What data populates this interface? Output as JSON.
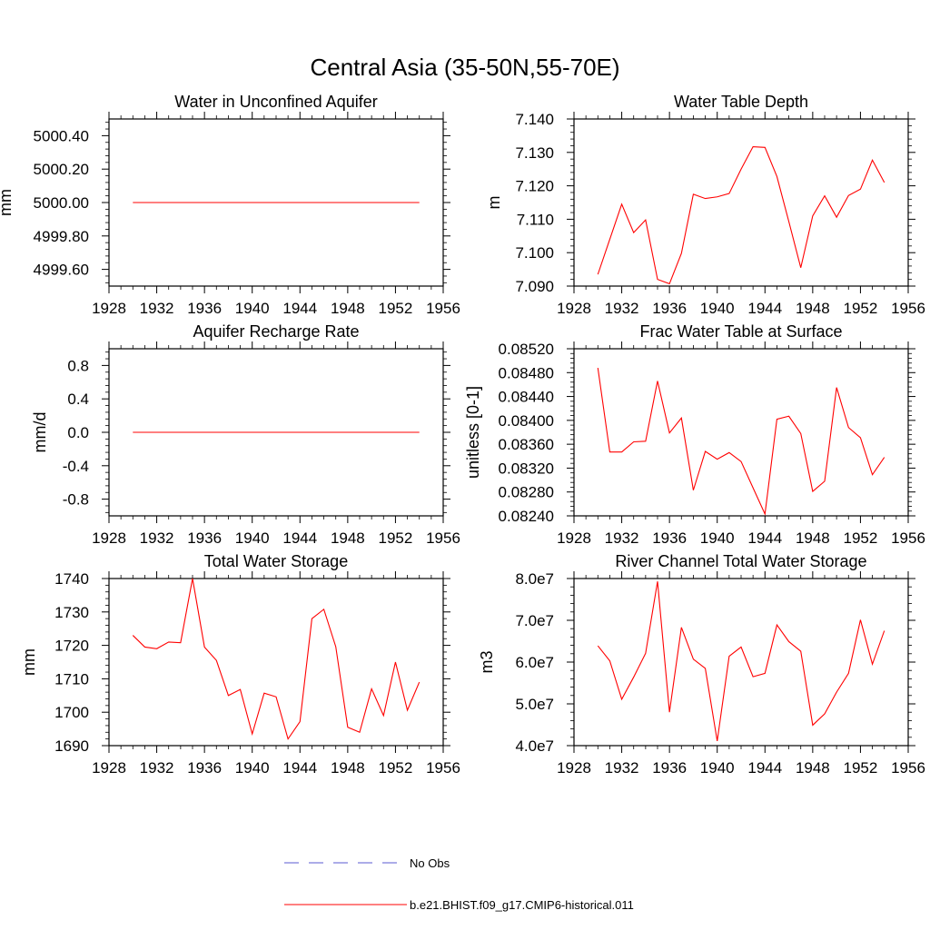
{
  "figure": {
    "title": "Central Asia (35-50N,55-70E)"
  },
  "legend": {
    "entries": [
      {
        "label": "No Obs",
        "color": "#5a5ad2",
        "dash": true
      },
      {
        "label": "b.e21.BHIST.f09_g17.CMIP6-historical.011",
        "color": "#ff0000",
        "dash": false
      }
    ]
  },
  "chart_data": [
    {
      "type": "line",
      "title": "Water in Unconfined Aquifer",
      "xlabel": "",
      "ylabel": "mm",
      "xlim": [
        1928,
        1956
      ],
      "ylim": [
        4999.5,
        5000.5
      ],
      "xticks": [
        1928,
        1932,
        1936,
        1940,
        1944,
        1948,
        1952,
        1956
      ],
      "xtick_labels": [
        "1928",
        "1932",
        "1936",
        "1940",
        "1944",
        "1948",
        "1952",
        "1956"
      ],
      "yticks": [
        4999.6,
        4999.8,
        5000.0,
        5000.2,
        5000.4
      ],
      "ytick_labels": [
        "4999.60",
        "4999.80",
        "5000.00",
        "5000.20",
        "5000.40"
      ],
      "series": [
        {
          "color": "#ff0000",
          "x": [
            1930,
            1954
          ],
          "y": [
            5000.0,
            5000.0
          ]
        }
      ]
    },
    {
      "type": "line",
      "title": "Water Table Depth",
      "xlabel": "",
      "ylabel": "m",
      "xlim": [
        1928,
        1956
      ],
      "ylim": [
        7.09,
        7.14
      ],
      "xticks": [
        1928,
        1932,
        1936,
        1940,
        1944,
        1948,
        1952,
        1956
      ],
      "xtick_labels": [
        "1928",
        "1932",
        "1936",
        "1940",
        "1944",
        "1948",
        "1952",
        "1956"
      ],
      "yticks": [
        7.09,
        7.1,
        7.11,
        7.12,
        7.13,
        7.14
      ],
      "ytick_labels": [
        "7.090",
        "7.100",
        "7.110",
        "7.120",
        "7.130",
        "7.140"
      ],
      "series": [
        {
          "color": "#ff0000",
          "x": [
            1930,
            1931,
            1932,
            1933,
            1934,
            1935,
            1936,
            1937,
            1938,
            1939,
            1940,
            1941,
            1942,
            1943,
            1944,
            1945,
            1946,
            1947,
            1948,
            1949,
            1950,
            1951,
            1952,
            1953,
            1954
          ],
          "y": [
            7.0935,
            7.104,
            7.1145,
            7.106,
            7.1098,
            7.092,
            7.0907,
            7.0998,
            7.1175,
            7.1162,
            7.1167,
            7.1177,
            7.125,
            7.1317,
            7.1315,
            7.1228,
            7.1093,
            7.0955,
            7.111,
            7.117,
            7.1106,
            7.1171,
            7.119,
            7.1277,
            7.121
          ]
        }
      ]
    },
    {
      "type": "line",
      "title": "Aquifer Recharge Rate",
      "xlabel": "",
      "ylabel": "mm/d",
      "xlim": [
        1928,
        1956
      ],
      "ylim": [
        -1.0,
        1.0
      ],
      "xticks": [
        1928,
        1932,
        1936,
        1940,
        1944,
        1948,
        1952,
        1956
      ],
      "xtick_labels": [
        "1928",
        "1932",
        "1936",
        "1940",
        "1944",
        "1948",
        "1952",
        "1956"
      ],
      "yticks": [
        -0.8,
        -0.4,
        0.0,
        0.4,
        0.8
      ],
      "ytick_labels": [
        "-0.8",
        "-0.4",
        "0.0",
        "0.4",
        "0.8"
      ],
      "series": [
        {
          "color": "#ff0000",
          "x": [
            1930,
            1954
          ],
          "y": [
            0.0,
            0.0
          ]
        }
      ]
    },
    {
      "type": "line",
      "title": "Frac Water Table at Surface",
      "xlabel": "",
      "ylabel": "unitless [0-1]",
      "xlim": [
        1928,
        1956
      ],
      "ylim": [
        0.0824,
        0.0852
      ],
      "xticks": [
        1928,
        1932,
        1936,
        1940,
        1944,
        1948,
        1952,
        1956
      ],
      "xtick_labels": [
        "1928",
        "1932",
        "1936",
        "1940",
        "1944",
        "1948",
        "1952",
        "1956"
      ],
      "yticks": [
        0.0824,
        0.0828,
        0.0832,
        0.0836,
        0.084,
        0.0844,
        0.0848,
        0.0852
      ],
      "ytick_labels": [
        "0.08240",
        "0.08280",
        "0.08320",
        "0.08360",
        "0.08400",
        "0.08440",
        "0.08480",
        "0.08520"
      ],
      "series": [
        {
          "color": "#ff0000",
          "x": [
            1930,
            1931,
            1932,
            1933,
            1934,
            1935,
            1936,
            1937,
            1938,
            1939,
            1940,
            1941,
            1942,
            1943,
            1944,
            1945,
            1946,
            1947,
            1948,
            1949,
            1950,
            1951,
            1952,
            1953,
            1954
          ],
          "y": [
            0.08488,
            0.08347,
            0.08347,
            0.08364,
            0.08365,
            0.08466,
            0.08379,
            0.08404,
            0.08283,
            0.08348,
            0.08335,
            0.08346,
            0.08331,
            0.08287,
            0.08243,
            0.08402,
            0.08407,
            0.08378,
            0.08281,
            0.08298,
            0.08455,
            0.08388,
            0.08371,
            0.08309,
            0.08338
          ]
        }
      ]
    },
    {
      "type": "line",
      "title": "Total Water Storage",
      "xlabel": "",
      "ylabel": "mm",
      "xlim": [
        1928,
        1956
      ],
      "ylim": [
        1690,
        1740
      ],
      "xticks": [
        1928,
        1932,
        1936,
        1940,
        1944,
        1948,
        1952,
        1956
      ],
      "xtick_labels": [
        "1928",
        "1932",
        "1936",
        "1940",
        "1944",
        "1948",
        "1952",
        "1956"
      ],
      "yticks": [
        1690,
        1700,
        1710,
        1720,
        1730,
        1740
      ],
      "ytick_labels": [
        "1690",
        "1700",
        "1710",
        "1720",
        "1730",
        "1740"
      ],
      "series": [
        {
          "color": "#ff0000",
          "x": [
            1930,
            1931,
            1932,
            1933,
            1934,
            1935,
            1936,
            1937,
            1938,
            1939,
            1940,
            1941,
            1942,
            1943,
            1944,
            1945,
            1946,
            1947,
            1948,
            1949,
            1950,
            1951,
            1952,
            1953,
            1954
          ],
          "y": [
            1723,
            1719.5,
            1719,
            1721,
            1720.8,
            1740,
            1719.5,
            1715.5,
            1705,
            1706.8,
            1693.5,
            1705.7,
            1704.6,
            1692,
            1697.2,
            1728,
            1730.8,
            1719.6,
            1695.5,
            1694,
            1707,
            1699,
            1715,
            1700.6,
            1709
          ]
        }
      ]
    },
    {
      "type": "line",
      "title": "River Channel Total Water Storage",
      "xlabel": "",
      "ylabel": "m3",
      "xlim": [
        1928,
        1956
      ],
      "ylim": [
        40000000,
        80000000
      ],
      "xticks": [
        1928,
        1932,
        1936,
        1940,
        1944,
        1948,
        1952,
        1956
      ],
      "xtick_labels": [
        "1928",
        "1932",
        "1936",
        "1940",
        "1944",
        "1948",
        "1952",
        "1956"
      ],
      "yticks": [
        40000000,
        50000000,
        60000000,
        70000000,
        80000000
      ],
      "ytick_labels": [
        "4.0e7",
        "5.0e7",
        "6.0e7",
        "7.0e7",
        "8.0e7"
      ],
      "series": [
        {
          "color": "#ff0000",
          "x": [
            1930,
            1931,
            1932,
            1933,
            1934,
            1935,
            1936,
            1937,
            1938,
            1939,
            1940,
            1941,
            1942,
            1943,
            1944,
            1945,
            1946,
            1947,
            1948,
            1949,
            1950,
            1951,
            1952,
            1953,
            1954
          ],
          "y": [
            63900000,
            60300000,
            51100000,
            56400000,
            62100000,
            79300000,
            48000000,
            68300000,
            60700000,
            58500000,
            41100000,
            61400000,
            63600000,
            56500000,
            57300000,
            68900000,
            64900000,
            62600000,
            44900000,
            47600000,
            52800000,
            57300000,
            70100000,
            59500000,
            67500000
          ]
        }
      ]
    }
  ]
}
